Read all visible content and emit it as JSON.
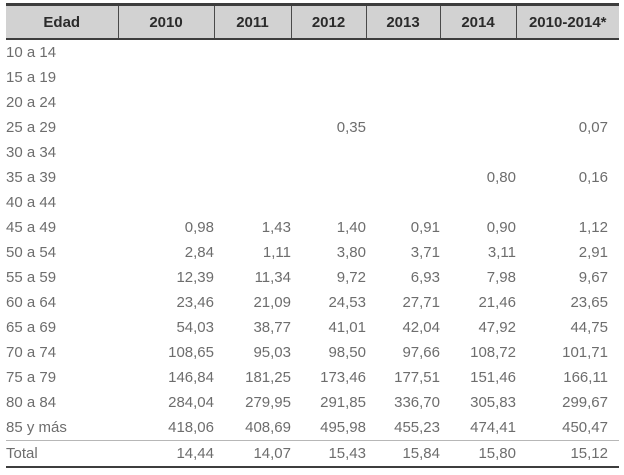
{
  "colors": {
    "header_background": "#d2d2d2",
    "header_text": "#2b2b2b",
    "body_text": "#6d6d6d",
    "strong_border": "#3d3d3d",
    "light_border": "#b7b7b7"
  },
  "table": {
    "header": {
      "age_label": "Edad",
      "columns": [
        "2010",
        "2011",
        "2012",
        "2013",
        "2014",
        "2010-2014*"
      ]
    },
    "rows": [
      {
        "label": "10 a 14",
        "values": [
          "",
          "",
          "",
          "",
          "",
          ""
        ]
      },
      {
        "label": "15 a 19",
        "values": [
          "",
          "",
          "",
          "",
          "",
          ""
        ]
      },
      {
        "label": "20 a 24",
        "values": [
          "",
          "",
          "",
          "",
          "",
          ""
        ]
      },
      {
        "label": "25 a 29",
        "values": [
          "",
          "",
          "0,35",
          "",
          "",
          "0,07"
        ]
      },
      {
        "label": "30 a 34",
        "values": [
          "",
          "",
          "",
          "",
          "",
          ""
        ]
      },
      {
        "label": "35 a 39",
        "values": [
          "",
          "",
          "",
          "",
          "0,80",
          "0,16"
        ]
      },
      {
        "label": "40 a 44",
        "values": [
          "",
          "",
          "",
          "",
          "",
          ""
        ]
      },
      {
        "label": "45 a 49",
        "values": [
          "0,98",
          "1,43",
          "1,40",
          "0,91",
          "0,90",
          "1,12"
        ]
      },
      {
        "label": "50 a 54",
        "values": [
          "2,84",
          "1,11",
          "3,80",
          "3,71",
          "3,11",
          "2,91"
        ]
      },
      {
        "label": "55 a 59",
        "values": [
          "12,39",
          "11,34",
          "9,72",
          "6,93",
          "7,98",
          "9,67"
        ]
      },
      {
        "label": "60 a 64",
        "values": [
          "23,46",
          "21,09",
          "24,53",
          "27,71",
          "21,46",
          "23,65"
        ]
      },
      {
        "label": "65 a 69",
        "values": [
          "54,03",
          "38,77",
          "41,01",
          "42,04",
          "47,92",
          "44,75"
        ]
      },
      {
        "label": "70 a 74",
        "values": [
          "108,65",
          "95,03",
          "98,50",
          "97,66",
          "108,72",
          "101,71"
        ]
      },
      {
        "label": "75 a 79",
        "values": [
          "146,84",
          "181,25",
          "173,46",
          "177,51",
          "151,46",
          "166,11"
        ]
      },
      {
        "label": "80 a 84",
        "values": [
          "284,04",
          "279,95",
          "291,85",
          "336,70",
          "305,83",
          "299,67"
        ]
      },
      {
        "label": "85 y más",
        "values": [
          "418,06",
          "408,69",
          "495,98",
          "455,23",
          "474,41",
          "450,47"
        ]
      },
      {
        "label": "Total",
        "values": [
          "14,44",
          "14,07",
          "15,43",
          "15,84",
          "15,80",
          "15,12"
        ]
      }
    ]
  }
}
